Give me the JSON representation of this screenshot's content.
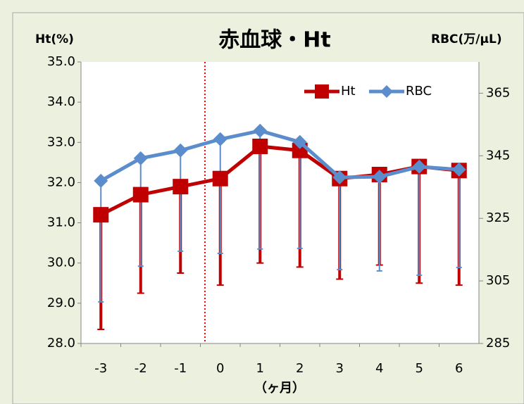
{
  "chart_data": {
    "type": "line",
    "title": "赤血球・Ht",
    "y_label": "Ht(%)",
    "y2_label": "RBC(万/μL)",
    "x_label": "（ヶ月）",
    "categories": [
      "-3",
      "-2",
      "-1",
      "0",
      "1",
      "2",
      "3",
      "4",
      "5",
      "6"
    ],
    "ylim": [
      28,
      35
    ],
    "yticks": [
      {
        "value": 28,
        "label": "28.0"
      },
      {
        "value": 29,
        "label": "29.0"
      },
      {
        "value": 30,
        "label": "30.0"
      },
      {
        "value": 31,
        "label": "31.0"
      },
      {
        "value": 32,
        "label": "32.0"
      },
      {
        "value": 33,
        "label": "33.0"
      },
      {
        "value": 34,
        "label": "34.0"
      },
      {
        "value": 35,
        "label": "35.0"
      }
    ],
    "y2lim": [
      285,
      375
    ],
    "y2ticks": [
      285,
      305,
      325,
      345,
      365
    ],
    "legend": "upper right",
    "series": [
      {
        "name": "Ht",
        "color": "#c00000",
        "marker": "square",
        "values": [
          31.2,
          31.7,
          31.9,
          32.1,
          32.9,
          32.8,
          32.1,
          32.2,
          32.4,
          32.3
        ],
        "errors": [
          2.85,
          2.45,
          2.15,
          2.65,
          2.9,
          2.9,
          2.5,
          2.25,
          2.9,
          2.85
        ]
      },
      {
        "name": "RBC",
        "color": "#5b8ccc",
        "marker": "diamond",
        "axis": "y2",
        "values": [
          337,
          344.2,
          346.7,
          350.3,
          353,
          349.4,
          338.1,
          338.3,
          341.5,
          340.6
        ],
        "errors": [
          38.7,
          34.5,
          32.2,
          36.5,
          37.8,
          34,
          29.5,
          30.1,
          34.7,
          31.3
        ]
      }
    ]
  }
}
